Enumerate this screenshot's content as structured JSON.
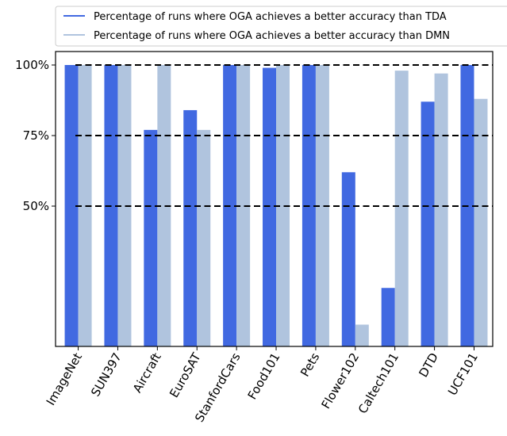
{
  "chart_data": {
    "type": "bar",
    "categories": [
      "ImageNet",
      "SUN397",
      "Aircraft",
      "EuroSAT",
      "StanfordCars",
      "Food101",
      "Pets",
      "Flower102",
      "Caltech101",
      "DTD",
      "UCF101"
    ],
    "series": [
      {
        "name": "Percentage of runs where OGA achieves a better accuracy than TDA",
        "color": "#4169e1",
        "values": [
          100,
          100,
          77,
          84,
          100,
          99,
          100,
          62,
          21,
          87,
          100
        ]
      },
      {
        "name": "Percentage of runs where OGA achieves a better accuracy than DMN",
        "color": "#b0c4de",
        "values": [
          100,
          100,
          100,
          77,
          100,
          100,
          100,
          8,
          98,
          97,
          88
        ]
      }
    ],
    "yticks": [
      {
        "value": 50,
        "label": "50%"
      },
      {
        "value": 75,
        "label": "75%"
      },
      {
        "value": 100,
        "label": "100%"
      }
    ],
    "reference_lines": [
      50,
      75,
      100
    ],
    "ylim": [
      0,
      104
    ],
    "grid": false,
    "legend_position": "top"
  }
}
